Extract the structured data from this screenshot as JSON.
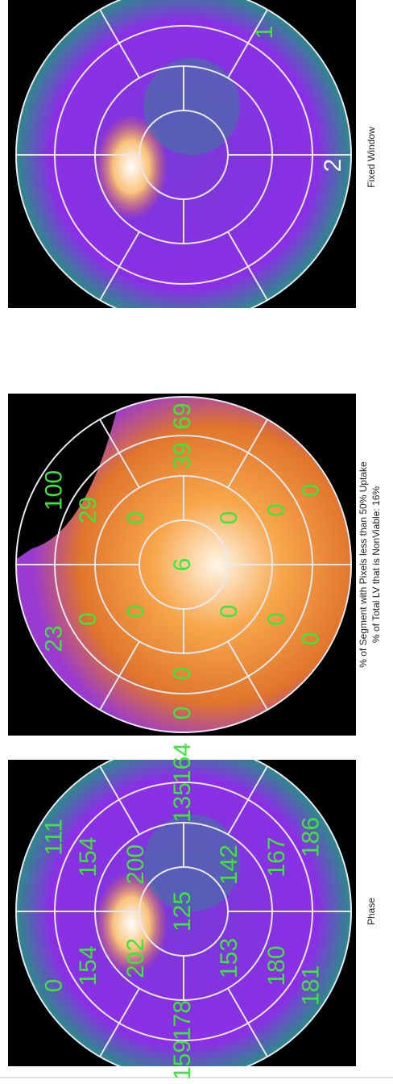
{
  "panels": [
    {
      "caption": "Phase",
      "outer": [
        0,
        111,
        164,
        186,
        181,
        159
      ],
      "mid": [
        154,
        154,
        135,
        167,
        180,
        178
      ],
      "apical": [
        202,
        200,
        142,
        153
      ],
      "apex": 125
    },
    {
      "captions": [
        "% of Segment with Pixels less than 50% Uptake",
        "% of Total LV that is NonViable: 16%"
      ],
      "outer": [
        23,
        100,
        69,
        0,
        0,
        0
      ],
      "mid": [
        0,
        29,
        39,
        0,
        0,
        0
      ],
      "apical": [
        0,
        0,
        0,
        0
      ],
      "apex": 6
    },
    {
      "caption": "Fixed Window",
      "labels": [
        "1",
        "2"
      ]
    }
  ]
}
